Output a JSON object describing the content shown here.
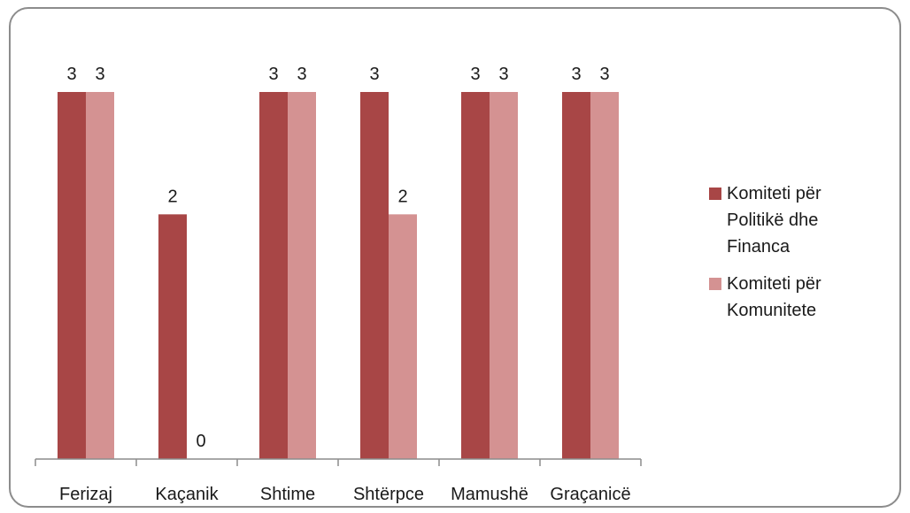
{
  "chart_data": {
    "type": "bar",
    "categories": [
      "Ferizaj",
      "Kaçanik",
      "Shtime",
      "Shtërpce",
      "Mamushë",
      "Graçanicë"
    ],
    "series": [
      {
        "name": "Komiteti për Politikë dhe Financa",
        "color": "#a84646",
        "values": [
          3,
          2,
          3,
          3,
          3,
          3
        ]
      },
      {
        "name": "Komiteti për Komunitete",
        "color": "#d49292",
        "values": [
          3,
          0,
          3,
          2,
          3,
          3
        ]
      }
    ],
    "data_labels": [
      [
        "3",
        "2",
        "3",
        "3",
        "3",
        "3"
      ],
      [
        "3",
        "0",
        "3",
        "2",
        "3",
        "3"
      ]
    ],
    "ylim": [
      0,
      3
    ],
    "grid": false,
    "legend_position": "right"
  }
}
